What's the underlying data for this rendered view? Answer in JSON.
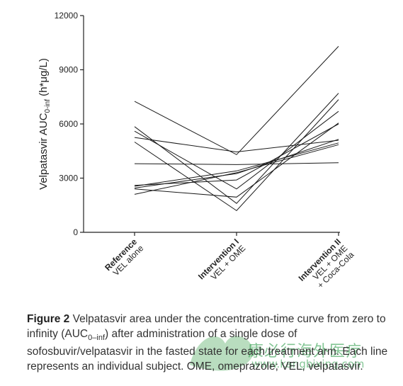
{
  "chart_data": {
    "type": "line",
    "title": "",
    "ylabel": "Velpatasvir AUC",
    "ylabel_sub": "0-inf",
    "ylabel_unit": " (h*μg/L)",
    "ylim": [
      0,
      12000
    ],
    "yticks": [
      0,
      3000,
      6000,
      9000,
      12000
    ],
    "grid": false,
    "categories": [
      [
        "Reference",
        "VEL alone"
      ],
      [
        "Intervention I",
        "VEL + OME"
      ],
      [
        "Intervention II",
        "VEL + OME",
        "+ Coca-Cola"
      ]
    ],
    "series": [
      {
        "values": [
          7250,
          4300,
          10300
        ]
      },
      {
        "values": [
          5850,
          1600,
          7700
        ]
      },
      {
        "values": [
          5600,
          2400,
          6700
        ]
      },
      {
        "values": [
          5250,
          4450,
          5100
        ]
      },
      {
        "values": [
          5000,
          1200,
          7350
        ]
      },
      {
        "values": [
          3800,
          3750,
          3850
        ]
      },
      {
        "values": [
          2600,
          2900,
          6000
        ]
      },
      {
        "values": [
          2550,
          3400,
          4950
        ]
      },
      {
        "values": [
          2450,
          3250,
          5150
        ]
      },
      {
        "values": [
          2400,
          1950,
          6050
        ]
      },
      {
        "values": [
          2100,
          3300,
          4850
        ]
      }
    ]
  },
  "caption": {
    "label": "Figure 2",
    "text_1": "  Velpatasvir area under the concentration-time curve from zero to infinity (AUC",
    "sub": "0–inf",
    "text_2": ") after administration of a single dose of sofosbuvir/velpatasvir in the fasted state for each treatment arm. Each line represents an individual subject. OME, omeprazole; VEL, velpatasvir."
  },
  "watermark": {
    "cn": "康必行海外医疗",
    "url": "www.kangbixing.com"
  },
  "colors": {
    "line": "#1a1a1a",
    "axis": "#222222",
    "watermark": "#1e963c"
  }
}
